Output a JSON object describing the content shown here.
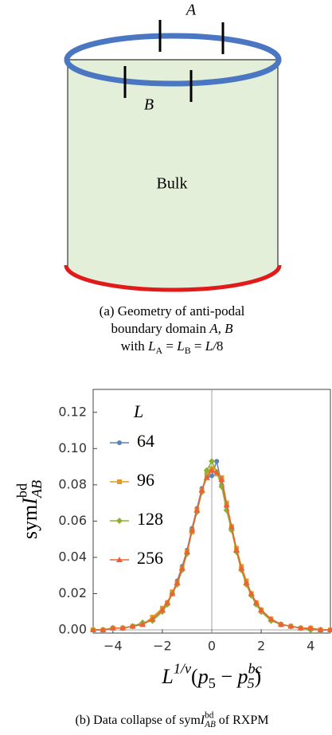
{
  "diagram": {
    "label_a": "A",
    "label_b": "B",
    "bulk": "Bulk",
    "caption": [
      [
        {
          "text": "(a) Geometry of anti-podal",
          "style": "r"
        }
      ],
      [
        {
          "text": "boundary domain ",
          "style": "r"
        },
        {
          "text": "A, B",
          "style": "i"
        }
      ],
      [
        {
          "text": "with ",
          "style": "r"
        },
        {
          "text": "L",
          "style": "i"
        },
        {
          "text": "A",
          "style": "sub"
        },
        {
          "text": " = ",
          "style": "r"
        },
        {
          "text": "L",
          "style": "i"
        },
        {
          "text": "B",
          "style": "sub"
        },
        {
          "text": " = ",
          "style": "r"
        },
        {
          "text": "L/",
          "style": "i"
        },
        {
          "text": "8",
          "style": "r"
        }
      ]
    ]
  },
  "chart_data": {
    "type": "line",
    "xlabel": [
      {
        "text": "L",
        "style": "i"
      },
      {
        "text": "1/ν",
        "style": "sup"
      },
      {
        "text": "(",
        "style": "r"
      },
      {
        "text": "p",
        "style": "i"
      },
      {
        "text": "5",
        "style": "sub"
      },
      {
        "text": " − ",
        "style": "r"
      },
      {
        "text": "p",
        "style": "i"
      },
      {
        "text": "bc",
        "style": "supsub"
      },
      {
        "text": "5",
        "style": "subx"
      },
      {
        "text": ")",
        "style": "r"
      }
    ],
    "ylabel": [
      {
        "text": "sym",
        "style": "r"
      },
      {
        "text": "I",
        "style": "i"
      },
      {
        "text": "bd",
        "style": "sup"
      },
      {
        "text": "AB",
        "style": "subx"
      }
    ],
    "caption": [
      {
        "text": "(b) Data collapse of sym",
        "style": "r"
      },
      {
        "text": "I",
        "style": "i"
      },
      {
        "text": "bd",
        "style": "sup"
      },
      {
        "text": "AB",
        "style": "subx"
      },
      {
        "text": " of RXPM",
        "style": "r"
      }
    ],
    "legend_title": "L",
    "x": [
      -4.8,
      -4.4,
      -4.0,
      -3.6,
      -3.2,
      -2.8,
      -2.4,
      -2.0,
      -1.8,
      -1.6,
      -1.4,
      -1.2,
      -1.0,
      -0.8,
      -0.6,
      -0.4,
      -0.2,
      0,
      0.2,
      0.4,
      0.6,
      0.8,
      1.0,
      1.2,
      1.4,
      1.6,
      1.8,
      2.0,
      2.4,
      2.8,
      3.2,
      3.6,
      4.0,
      4.4,
      4.8
    ],
    "series": [
      {
        "name": "64",
        "color": "#5e81b5",
        "marker": "circle",
        "values": [
          0,
          0,
          0.001,
          0.001,
          0.002,
          0.003,
          0.006,
          0.011,
          0.015,
          0.02,
          0.027,
          0.035,
          0.044,
          0.056,
          0.067,
          0.078,
          0.084,
          0.085,
          0.093,
          0.08,
          0.068,
          0.056,
          0.045,
          0.034,
          0.026,
          0.019,
          0.014,
          0.01,
          0.006,
          0.003,
          0.002,
          0.001,
          0.001,
          0,
          0
        ]
      },
      {
        "name": "96",
        "color": "#e19c24",
        "marker": "square",
        "values": [
          0,
          0,
          0.001,
          0.001,
          0.002,
          0.003,
          0.007,
          0.012,
          0.015,
          0.021,
          0.026,
          0.034,
          0.043,
          0.054,
          0.066,
          0.077,
          0.086,
          0.089,
          0.086,
          0.084,
          0.07,
          0.057,
          0.045,
          0.035,
          0.027,
          0.02,
          0.015,
          0.011,
          0.006,
          0.003,
          0.002,
          0.001,
          0.001,
          0,
          0
        ]
      },
      {
        "name": "128",
        "color": "#8fb032",
        "marker": "diamond",
        "values": [
          0,
          0,
          0.001,
          0.001,
          0.002,
          0.004,
          0.005,
          0.01,
          0.014,
          0.02,
          0.025,
          0.033,
          0.042,
          0.055,
          0.065,
          0.076,
          0.088,
          0.093,
          0.087,
          0.079,
          0.066,
          0.055,
          0.043,
          0.033,
          0.025,
          0.019,
          0.014,
          0.01,
          0.005,
          0.003,
          0.002,
          0.001,
          0,
          0,
          0
        ]
      },
      {
        "name": "256",
        "color": "#eb6235",
        "marker": "triangle",
        "values": [
          0,
          0,
          0.001,
          0.001,
          0.002,
          0.003,
          0.006,
          0.011,
          0.015,
          0.02,
          0.026,
          0.034,
          0.043,
          0.055,
          0.066,
          0.077,
          0.084,
          0.088,
          0.087,
          0.083,
          0.069,
          0.057,
          0.044,
          0.034,
          0.026,
          0.02,
          0.015,
          0.011,
          0.006,
          0.003,
          0.002,
          0.001,
          0.001,
          0,
          0
        ]
      }
    ],
    "xlim": [
      -4.8,
      4.8
    ],
    "ylim": [
      0,
      0.13
    ],
    "xticks": [
      {
        "value": -4,
        "label": "−4"
      },
      {
        "value": -2,
        "label": "−2"
      },
      0,
      2,
      4
    ],
    "yticks": [
      {
        "value": 0,
        "label": "0.00"
      },
      {
        "value": 0.02,
        "label": "0.02"
      },
      {
        "value": 0.04,
        "label": "0.04"
      },
      {
        "value": 0.06,
        "label": "0.06"
      },
      {
        "value": 0.08,
        "label": "0.08"
      },
      {
        "value": 0.1,
        "label": "0.10"
      },
      {
        "value": 0.12,
        "label": "0.12"
      }
    ]
  }
}
